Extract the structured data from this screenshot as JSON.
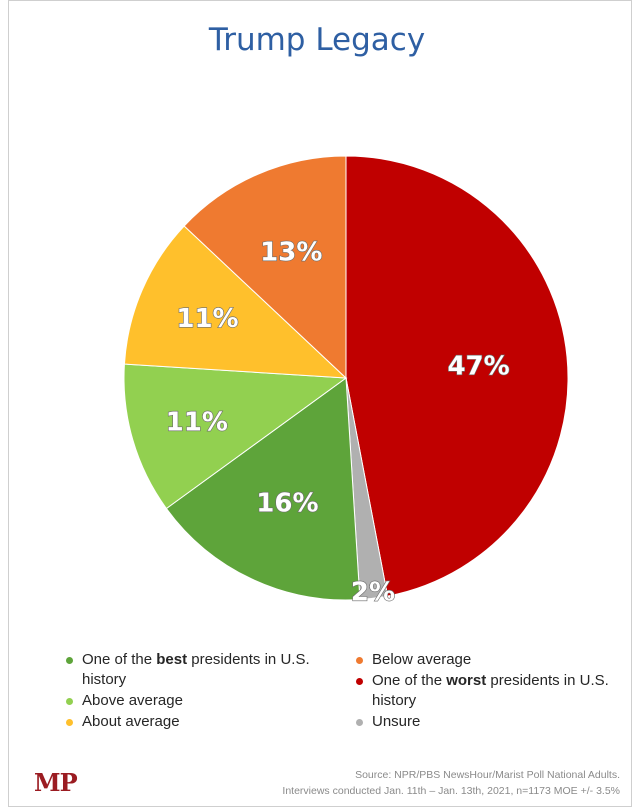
{
  "chart_data": {
    "type": "pie",
    "title": "Trump Legacy",
    "slices": [
      {
        "label_parts": [
          "One of the ",
          "worst",
          " presidents in U.S. history"
        ],
        "value": 47,
        "display": "47%",
        "color": "#c00000"
      },
      {
        "label_parts": [
          "Unsure",
          "",
          ""
        ],
        "value": 2,
        "display": "2%",
        "color": "#b0b0b0"
      },
      {
        "label_parts": [
          "One of the ",
          "best",
          " presidents in U.S. history"
        ],
        "value": 16,
        "display": "16%",
        "color": "#5ea43a"
      },
      {
        "label_parts": [
          "Above average",
          "",
          ""
        ],
        "value": 11,
        "display": "11%",
        "color": "#92d050"
      },
      {
        "label_parts": [
          "About average",
          "",
          ""
        ],
        "value": 11,
        "display": "11%",
        "color": "#ffc02c"
      },
      {
        "label_parts": [
          "Below average",
          "",
          ""
        ],
        "value": 13,
        "display": "13%",
        "color": "#ef7a30"
      }
    ],
    "legend_left": [
      2,
      3,
      4
    ],
    "legend_right": [
      5,
      0,
      1
    ]
  },
  "logo": "MP",
  "source_line1": "Source: NPR/PBS NewsHour/Marist Poll National Adults.",
  "source_line2": "Interviews conducted Jan. 11th – Jan. 13th, 2021, n=1173 MOE +/- 3.5%"
}
